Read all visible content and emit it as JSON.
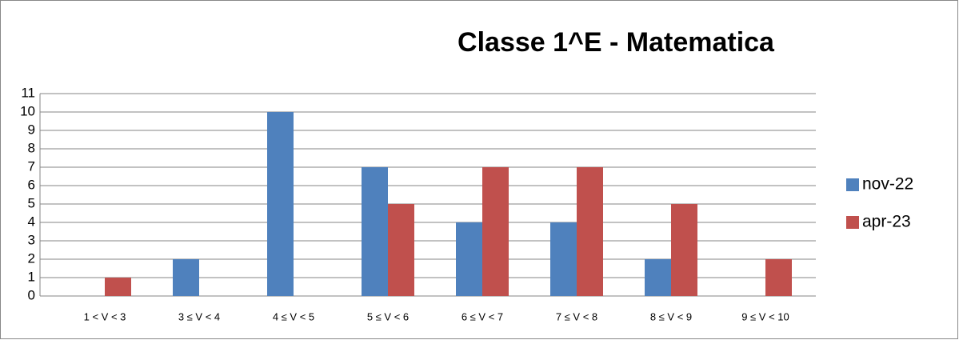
{
  "chart_data": {
    "type": "bar",
    "title": "Classe 1^E - Matematica",
    "categories": [
      "1 < V < 3",
      "3 ≤ V < 4",
      "4 ≤ V < 5",
      "5 ≤ V < 6",
      "6 ≤ V < 7",
      "7 ≤ V < 8",
      "8 ≤ V < 9",
      "9 ≤ V < 10"
    ],
    "series": [
      {
        "name": "nov-22",
        "color": "#4f81bd",
        "values": [
          0,
          2,
          10,
          7,
          4,
          4,
          2,
          0
        ]
      },
      {
        "name": "apr-23",
        "color": "#c0504d",
        "values": [
          1,
          0,
          0,
          5,
          7,
          7,
          5,
          2
        ]
      }
    ],
    "ylim": [
      0,
      11
    ],
    "yticks": [
      0,
      1,
      2,
      3,
      4,
      5,
      6,
      7,
      8,
      9,
      10,
      11
    ],
    "grid": true,
    "legend": "right"
  }
}
